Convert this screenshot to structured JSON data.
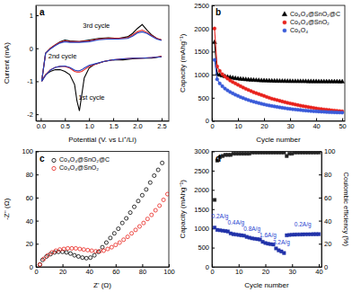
{
  "chart_data": [
    {
      "type": "line",
      "title": "a",
      "x_label": "Potential (V. vs Li⁺/Li)",
      "y_label": "Current (mA)",
      "x": [
        2.5,
        2.3,
        2.1,
        1.9,
        1.7,
        1.5,
        1.3,
        1.1,
        1.0,
        0.9,
        0.85,
        0.8,
        0.75,
        0.7,
        0.6,
        0.5,
        0.4,
        0.3,
        0.2,
        0.1,
        0.02,
        0.1,
        0.2,
        0.3,
        0.4,
        0.5,
        0.6,
        0.8,
        1.0,
        1.2,
        1.4,
        1.6,
        1.8,
        1.9,
        2.0,
        2.1,
        2.2,
        2.3,
        2.4,
        2.5
      ],
      "series": [
        {
          "color": "#000000",
          "marker": "none",
          "line_style": "solid",
          "values": [
            -0.25,
            -0.3,
            -0.3,
            -0.32,
            -0.35,
            -0.35,
            -0.4,
            -0.5,
            -0.6,
            -0.9,
            -1.4,
            -1.9,
            -1.6,
            -1.1,
            -0.8,
            -0.7,
            -0.65,
            -0.65,
            -0.7,
            -0.8,
            -1.0,
            -0.15,
            0.0,
            0.1,
            0.2,
            0.25,
            0.22,
            0.2,
            0.25,
            0.3,
            0.32,
            0.3,
            0.35,
            0.45,
            0.6,
            0.72,
            0.55,
            0.4,
            0.3,
            0.25
          ]
        },
        {
          "color": "#e8221c",
          "marker": "none",
          "line_style": "solid",
          "values": [
            -0.25,
            -0.28,
            -0.3,
            -0.3,
            -0.32,
            -0.35,
            -0.4,
            -0.5,
            -0.55,
            -0.65,
            -0.7,
            -0.72,
            -0.72,
            -0.7,
            -0.6,
            -0.55,
            -0.55,
            -0.58,
            -0.65,
            -0.8,
            -1.0,
            -0.15,
            0.0,
            0.1,
            0.18,
            0.22,
            0.2,
            0.2,
            0.22,
            0.28,
            0.3,
            0.3,
            0.32,
            0.4,
            0.5,
            0.55,
            0.48,
            0.38,
            0.3,
            0.25
          ]
        },
        {
          "color": "#1f3fbf",
          "marker": "none",
          "line_style": "solid",
          "values": [
            -0.26,
            -0.28,
            -0.3,
            -0.3,
            -0.32,
            -0.35,
            -0.4,
            -0.48,
            -0.52,
            -0.6,
            -0.65,
            -0.68,
            -0.68,
            -0.66,
            -0.58,
            -0.54,
            -0.55,
            -0.58,
            -0.66,
            -0.82,
            -1.0,
            -0.15,
            -0.02,
            0.08,
            0.16,
            0.2,
            0.18,
            0.18,
            0.2,
            0.26,
            0.28,
            0.28,
            0.3,
            0.37,
            0.46,
            0.5,
            0.45,
            0.36,
            0.28,
            0.24
          ]
        }
      ],
      "annotations": [
        {
          "text": "1st cycle",
          "x": 1.05,
          "y": -1.55
        },
        {
          "text": "2nd cycle",
          "x": 0.45,
          "y": -0.32
        },
        {
          "text": "3rd cycle",
          "x": 1.15,
          "y": 0.62
        }
      ],
      "xlim": [
        -0.1,
        2.65
      ],
      "xticks": [
        {
          "value": 0,
          "label": "0.0"
        },
        {
          "value": 0.5,
          "label": "0.5"
        },
        {
          "value": 1,
          "label": "1.0"
        },
        {
          "value": 1.5,
          "label": "1.5"
        },
        {
          "value": 2,
          "label": "2.0"
        },
        {
          "value": 2.5,
          "label": "2.5"
        }
      ],
      "ylim": [
        -2.2,
        1.3
      ],
      "yticks": [
        -2,
        -1,
        0,
        1
      ]
    },
    {
      "type": "line",
      "title": "b",
      "x_label": "Cycle number",
      "y_label": "Capacity (mAhg⁻¹)",
      "x": [
        1,
        2,
        3,
        4,
        5,
        6,
        7,
        8,
        9,
        10,
        11,
        12,
        13,
        14,
        15,
        16,
        17,
        18,
        19,
        20,
        21,
        22,
        23,
        24,
        25,
        26,
        27,
        28,
        29,
        30,
        31,
        32,
        33,
        34,
        35,
        36,
        37,
        38,
        39,
        40,
        41,
        42,
        43,
        44,
        45,
        46,
        47,
        48,
        49,
        50
      ],
      "series": [
        {
          "name": "Co₃O₄@SnO₂@C",
          "color": "#000000",
          "marker": "triangle",
          "line_style": "solid",
          "values": [
            1700,
            1010,
            990,
            975,
            960,
            950,
            940,
            930,
            920,
            912,
            905,
            900,
            895,
            890,
            886,
            882,
            878,
            875,
            872,
            870,
            868,
            866,
            864,
            862,
            861,
            860,
            859,
            858,
            857,
            856,
            855,
            855,
            854,
            854,
            853,
            853,
            852,
            852,
            851,
            851,
            850,
            850,
            850,
            849,
            849,
            848,
            848,
            848,
            847,
            847
          ]
        },
        {
          "name": "Co₃O₄@SnO₂",
          "color": "#e8221c",
          "marker": "circle",
          "line_style": "solid",
          "values": [
            2000,
            1180,
            1080,
            1010,
            960,
            915,
            875,
            840,
            810,
            780,
            750,
            720,
            695,
            670,
            645,
            620,
            600,
            580,
            560,
            540,
            520,
            500,
            480,
            465,
            450,
            435,
            420,
            405,
            390,
            378,
            366,
            354,
            342,
            330,
            320,
            310,
            300,
            290,
            280,
            270,
            262,
            255,
            248,
            241,
            235,
            228,
            222,
            216,
            210,
            205
          ]
        },
        {
          "name": "Co₃O₄",
          "color": "#3a5bd9",
          "marker": "circle",
          "line_style": "solid",
          "values": [
            1320,
            900,
            810,
            750,
            700,
            660,
            625,
            595,
            565,
            540,
            515,
            492,
            470,
            450,
            432,
            415,
            400,
            385,
            370,
            357,
            345,
            333,
            322,
            312,
            302,
            292,
            283,
            275,
            267,
            259,
            252,
            246,
            240,
            234,
            228,
            223,
            218,
            213,
            209,
            205,
            201,
            198,
            195,
            192,
            189,
            186,
            184,
            182,
            180,
            178
          ]
        }
      ],
      "legend": "upper-right",
      "xlim": [
        0,
        51
      ],
      "xticks": [
        0,
        10,
        20,
        30,
        40,
        50
      ],
      "ylim": [
        0,
        2500
      ],
      "yticks": [
        0,
        500,
        1000,
        1500,
        2000,
        2500
      ]
    },
    {
      "type": "scatter",
      "title": "c",
      "x_label": "Z' (Ω)",
      "y_label": "-Z'' (Ω)",
      "series": [
        {
          "name": "Co₃O₄@SnO₂@C",
          "color": "#000000",
          "marker": "open-circle",
          "line_style": "none",
          "x": [
            3,
            5,
            8,
            11,
            14,
            17,
            20,
            23,
            26,
            29,
            32,
            35,
            38,
            41,
            44,
            47,
            50,
            53,
            56,
            59,
            62,
            65,
            68,
            71,
            74,
            77,
            80,
            83,
            86,
            89,
            92,
            95
          ],
          "values": [
            2,
            6,
            9,
            11,
            12.5,
            13,
            13,
            12.5,
            11.5,
            10,
            9,
            8,
            7.5,
            8,
            10,
            13,
            17,
            21,
            25,
            29,
            33,
            38,
            42,
            47,
            52,
            57,
            62,
            67,
            73,
            79,
            84,
            90
          ]
        },
        {
          "name": "Co₃O₄@SnO₂",
          "color": "#e8221c",
          "marker": "open-circle",
          "line_style": "none",
          "x": [
            3,
            6,
            9,
            12,
            15,
            18,
            21,
            24,
            27,
            30,
            33,
            36,
            39,
            42,
            45,
            48,
            51,
            54,
            57,
            60,
            63,
            66,
            69,
            72,
            75,
            78,
            81,
            84,
            87,
            90,
            93,
            96,
            99
          ],
          "values": [
            2,
            7,
            10,
            12.5,
            14,
            15,
            15.5,
            16,
            16,
            16,
            15.5,
            15,
            14.5,
            14,
            13.5,
            13.5,
            14,
            15.5,
            17,
            19,
            21,
            23.5,
            26,
            29,
            32,
            35,
            38,
            41.5,
            45,
            49,
            53,
            58,
            63
          ]
        }
      ],
      "legend": "upper-left",
      "xlim": [
        0,
        100
      ],
      "xticks": [
        0,
        20,
        40,
        60,
        80,
        100
      ],
      "ylim": [
        0,
        100
      ],
      "yticks": [
        0,
        20,
        40,
        60,
        80,
        100
      ]
    },
    {
      "type": "scatter",
      "title": "d",
      "x_label": "Cycle number",
      "y_label": "Capacity (mAhg⁻¹)",
      "y2_label": "Coulombic efficiency (%)",
      "x": [
        1,
        2,
        3,
        4,
        5,
        6,
        7,
        8,
        9,
        10,
        11,
        12,
        13,
        14,
        15,
        16,
        17,
        18,
        19,
        20,
        21,
        22,
        23,
        24,
        25,
        26,
        27,
        28,
        29,
        30,
        31,
        32,
        33,
        34,
        35,
        36,
        37,
        38,
        39,
        40
      ],
      "series": [
        {
          "color": "#2233aa",
          "marker": "square",
          "line_style": "none",
          "values": [
            1020,
            960,
            950,
            940,
            930,
            920,
            870,
            850,
            840,
            830,
            820,
            810,
            780,
            760,
            740,
            730,
            720,
            710,
            650,
            620,
            600,
            590,
            580,
            480,
            430,
            400,
            360,
            820,
            830,
            835,
            838,
            840,
            842,
            844,
            845,
            846,
            847,
            848,
            849,
            850
          ]
        },
        {
          "color": "#222222",
          "marker": "square",
          "line_style": "none",
          "axis": "y2",
          "values": [
            58,
            92,
            95,
            96,
            97,
            97,
            97,
            98,
            98,
            98,
            98,
            98,
            98,
            98,
            99,
            99,
            99,
            99,
            99,
            99,
            99,
            99,
            99,
            99,
            99,
            99,
            99,
            96,
            98,
            98,
            99,
            99,
            99,
            99,
            99,
            99,
            99,
            99,
            99,
            99
          ]
        }
      ],
      "annotations": [
        {
          "text": "0.2A/g",
          "x": 3,
          "y": 1270
        },
        {
          "text": "0.4A/g",
          "x": 9,
          "y": 1100
        },
        {
          "text": "0.8A/g",
          "x": 15,
          "y": 930
        },
        {
          "text": "1.6A/g",
          "x": 21,
          "y": 760
        },
        {
          "text": "3.2A/g",
          "x": 26,
          "y": 590
        },
        {
          "text": "0.2A/g",
          "x": 34,
          "y": 1050
        }
      ],
      "xlim": [
        0,
        41
      ],
      "xticks": [
        0,
        10,
        20,
        30,
        40
      ],
      "ylim": [
        0,
        3000
      ],
      "yticks": [
        0,
        500,
        1000,
        1500,
        2000,
        2500,
        3000
      ],
      "y2lim": [
        0,
        100
      ],
      "y2ticks": [
        0,
        20,
        40,
        60,
        80,
        100
      ]
    }
  ]
}
